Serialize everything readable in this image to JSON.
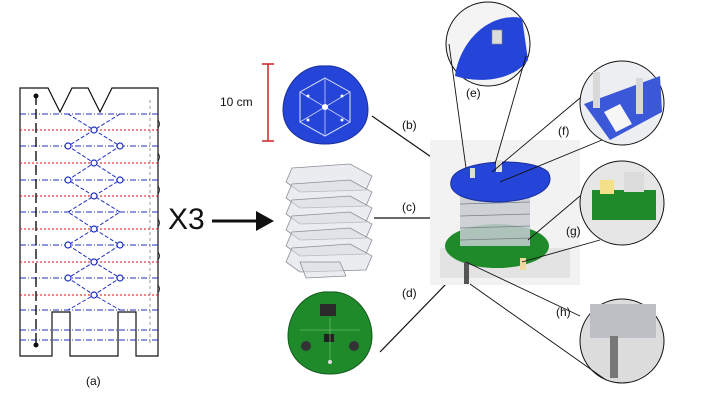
{
  "labels": {
    "a": "(a)",
    "b": "(b)",
    "c": "(c)",
    "d": "(d)",
    "e": "(e)",
    "f": "(f)",
    "g": "(g)",
    "h": "(h)"
  },
  "multiplier": "X3",
  "scale_bar": "10 cm",
  "colors": {
    "fold_blue": "#1f2fbf",
    "fold_red": "#d01010",
    "pcb_green": "#1f8a2a",
    "plate_blue": "#2545d8",
    "scale_red": "#cc2222"
  }
}
